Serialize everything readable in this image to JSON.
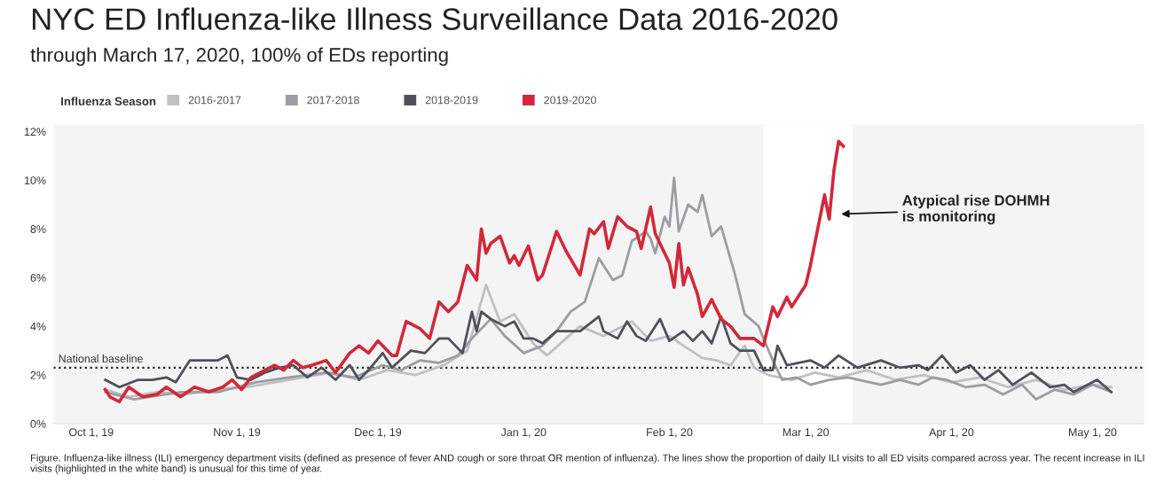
{
  "chart_data": {
    "type": "line",
    "title": "NYC ED Influenza-like Illness Surveillance Data 2016-2020",
    "subtitle": "through March 17, 2020, 100% of EDs reporting",
    "legend_title": "Influenza Season",
    "legend": "top left",
    "grid": false,
    "marker": "none",
    "line_style": "solid",
    "xlim": [
      "2019-09-23",
      "2020-05-12"
    ],
    "xticks": [
      {
        "value": "2019-10-01",
        "label": "Oct 1, 19"
      },
      {
        "value": "2019-11-01",
        "label": "Nov 1, 19"
      },
      {
        "value": "2019-12-01",
        "label": "Dec 1, 19"
      },
      {
        "value": "2020-01-01",
        "label": "Jan 1, 20"
      },
      {
        "value": "2020-02-01",
        "label": "Feb 1, 20"
      },
      {
        "value": "2020-03-01",
        "label": "Mar 1, 20"
      },
      {
        "value": "2020-04-01",
        "label": "Apr 1, 20"
      },
      {
        "value": "2020-05-01",
        "label": "May 1, 20"
      }
    ],
    "ylim": [
      0,
      12.3
    ],
    "yticks": [
      {
        "value": 0,
        "label": "0%"
      },
      {
        "value": 2,
        "label": "2%"
      },
      {
        "value": 4,
        "label": "4%"
      },
      {
        "value": 6,
        "label": "6%"
      },
      {
        "value": 8,
        "label": "8%"
      },
      {
        "value": 10,
        "label": "10%"
      },
      {
        "value": 12,
        "label": "12%"
      }
    ],
    "bands": [
      {
        "axis": "x",
        "from": "2020-02-21",
        "to": "2020-03-11",
        "color": "#ffffff"
      }
    ],
    "ref_lines": [
      {
        "axis": "y",
        "value": 2.3,
        "label": "National baseline",
        "line_style": "dotted",
        "color": "#222222"
      }
    ],
    "series": [
      {
        "name": "2016-2017",
        "color": "#bfc0c3",
        "x": [
          "2019-10-04",
          "2019-10-09",
          "2019-10-15",
          "2019-10-21",
          "2019-10-27",
          "2019-11-03",
          "2019-11-09",
          "2019-11-15",
          "2019-11-21",
          "2019-11-27",
          "2019-12-03",
          "2019-12-09",
          "2019-12-15",
          "2019-12-20",
          "2019-12-24",
          "2019-12-27",
          "2019-12-30",
          "2020-01-03",
          "2020-01-06",
          "2020-01-10",
          "2020-01-13",
          "2020-01-18",
          "2020-01-24",
          "2020-01-28",
          "2020-02-01",
          "2020-02-04",
          "2020-02-08",
          "2020-02-11",
          "2020-02-14",
          "2020-02-17",
          "2020-02-19",
          "2020-02-22",
          "2020-02-27",
          "2020-03-03",
          "2020-03-08",
          "2020-03-14",
          "2020-03-20",
          "2020-03-26",
          "2020-04-01",
          "2020-04-07",
          "2020-04-13",
          "2020-04-19",
          "2020-04-25",
          "2020-05-01",
          "2020-05-05"
        ],
        "values": [
          1.4,
          1.1,
          1.3,
          1.2,
          1.4,
          1.5,
          1.7,
          1.9,
          2.1,
          1.8,
          2.2,
          2.0,
          2.4,
          3.0,
          5.7,
          4.2,
          4.5,
          3.3,
          2.8,
          3.5,
          4.0,
          3.6,
          4.2,
          3.4,
          3.6,
          3.2,
          2.7,
          2.6,
          2.4,
          3.2,
          2.3,
          2.0,
          1.8,
          2.1,
          1.9,
          2.2,
          1.8,
          2.0,
          1.7,
          1.9,
          1.5,
          1.8,
          1.4,
          1.6,
          1.5
        ]
      },
      {
        "name": "2017-2018",
        "color": "#9b9da2",
        "x": [
          "2019-10-04",
          "2019-10-10",
          "2019-10-20",
          "2019-10-28",
          "2019-11-05",
          "2019-11-12",
          "2019-11-20",
          "2019-11-26",
          "2019-12-02",
          "2019-12-06",
          "2019-12-10",
          "2019-12-14",
          "2019-12-18",
          "2019-12-21",
          "2019-12-25",
          "2019-12-28",
          "2020-01-01",
          "2020-01-05",
          "2020-01-08",
          "2020-01-11",
          "2020-01-14",
          "2020-01-17",
          "2020-01-20",
          "2020-01-22",
          "2020-01-24",
          "2020-01-27",
          "2020-01-28",
          "2020-01-29",
          "2020-01-31",
          "2020-02-01",
          "2020-02-02",
          "2020-02-03",
          "2020-02-05",
          "2020-02-07",
          "2020-02-08",
          "2020-02-10",
          "2020-02-12",
          "2020-02-15",
          "2020-02-17",
          "2020-02-20",
          "2020-02-21",
          "2020-02-23",
          "2020-02-25",
          "2020-02-28",
          "2020-03-02",
          "2020-03-06",
          "2020-03-10",
          "2020-03-17",
          "2020-03-21",
          "2020-03-25",
          "2020-03-28",
          "2020-03-31",
          "2020-04-04",
          "2020-04-08",
          "2020-04-12",
          "2020-04-16",
          "2020-04-19",
          "2020-04-23",
          "2020-04-27",
          "2020-05-01",
          "2020-05-05"
        ],
        "values": [
          1.3,
          1.0,
          1.3,
          1.3,
          1.7,
          1.9,
          2.1,
          1.9,
          2.4,
          2.2,
          2.6,
          2.5,
          2.8,
          3.5,
          4.3,
          3.6,
          2.9,
          3.2,
          3.8,
          4.6,
          5.0,
          6.8,
          5.9,
          6.1,
          7.5,
          7.9,
          7.6,
          7.0,
          8.5,
          8.1,
          10.1,
          7.9,
          9.0,
          8.7,
          9.4,
          7.7,
          8.1,
          6.1,
          4.5,
          4.0,
          3.5,
          2.6,
          1.8,
          1.9,
          1.6,
          1.8,
          1.9,
          1.6,
          1.8,
          1.6,
          1.9,
          1.8,
          1.5,
          1.6,
          1.2,
          1.6,
          1.0,
          1.4,
          1.2,
          1.6,
          1.3
        ]
      },
      {
        "name": "2018-2019",
        "color": "#4e505a",
        "x": [
          "2019-10-04",
          "2019-10-07",
          "2019-10-11",
          "2019-10-14",
          "2019-10-17",
          "2019-10-19",
          "2019-10-22",
          "2019-10-25",
          "2019-10-28",
          "2019-10-30",
          "2019-11-01",
          "2019-11-04",
          "2019-11-07",
          "2019-11-10",
          "2019-11-13",
          "2019-11-16",
          "2019-11-19",
          "2019-11-22",
          "2019-11-25",
          "2019-11-27",
          "2019-11-29",
          "2019-12-02",
          "2019-12-04",
          "2019-12-08",
          "2019-12-11",
          "2019-12-14",
          "2019-12-16",
          "2019-12-19",
          "2019-12-21",
          "2019-12-22",
          "2019-12-23",
          "2019-12-25",
          "2019-12-28",
          "2019-12-30",
          "2020-01-01",
          "2020-01-03",
          "2020-01-05",
          "2020-01-08",
          "2020-01-10",
          "2020-01-13",
          "2020-01-17",
          "2020-01-18",
          "2020-01-21",
          "2020-01-23",
          "2020-01-25",
          "2020-01-27",
          "2020-01-30",
          "2020-02-01",
          "2020-02-04",
          "2020-02-06",
          "2020-02-08",
          "2020-02-10",
          "2020-02-12",
          "2020-02-14",
          "2020-02-16",
          "2020-02-19",
          "2020-02-21",
          "2020-02-23",
          "2020-02-24",
          "2020-02-26",
          "2020-03-02",
          "2020-03-05",
          "2020-03-08",
          "2020-03-12",
          "2020-03-17",
          "2020-03-21",
          "2020-03-25",
          "2020-03-27",
          "2020-03-30",
          "2020-04-02",
          "2020-04-05",
          "2020-04-08",
          "2020-04-11",
          "2020-04-14",
          "2020-04-18",
          "2020-04-22",
          "2020-04-25",
          "2020-04-27",
          "2020-04-30",
          "2020-05-02",
          "2020-05-05"
        ],
        "values": [
          1.8,
          1.5,
          1.8,
          1.8,
          1.9,
          1.7,
          2.6,
          2.6,
          2.6,
          2.8,
          1.9,
          1.8,
          2.1,
          2.3,
          2.4,
          1.9,
          2.3,
          1.8,
          2.4,
          1.8,
          2.2,
          2.9,
          2.3,
          3.0,
          2.9,
          3.5,
          3.5,
          2.9,
          4.6,
          3.8,
          4.6,
          4.3,
          4.0,
          4.2,
          3.5,
          3.5,
          3.3,
          3.8,
          3.8,
          3.8,
          4.4,
          3.8,
          3.5,
          4.2,
          3.6,
          3.4,
          4.3,
          3.4,
          3.8,
          3.4,
          3.8,
          3.3,
          4.4,
          3.3,
          3.0,
          3.0,
          2.2,
          2.2,
          3.2,
          2.4,
          2.6,
          2.3,
          2.8,
          2.3,
          2.6,
          2.3,
          2.4,
          2.2,
          2.8,
          2.1,
          2.4,
          1.8,
          2.2,
          1.6,
          2.1,
          1.5,
          1.6,
          1.3,
          1.6,
          1.8,
          1.3
        ]
      },
      {
        "name": "2019-2020",
        "color": "#d2283c",
        "x": [
          "2019-10-04",
          "2019-10-05",
          "2019-10-07",
          "2019-10-09",
          "2019-10-12",
          "2019-10-15",
          "2019-10-17",
          "2019-10-20",
          "2019-10-23",
          "2019-10-26",
          "2019-10-29",
          "2019-10-31",
          "2019-11-02",
          "2019-11-04",
          "2019-11-07",
          "2019-11-09",
          "2019-11-11",
          "2019-11-13",
          "2019-11-15",
          "2019-11-17",
          "2019-11-20",
          "2019-11-22",
          "2019-11-25",
          "2019-11-27",
          "2019-11-29",
          "2019-12-01",
          "2019-12-04",
          "2019-12-05",
          "2019-12-07",
          "2019-12-10",
          "2019-12-12",
          "2019-12-14",
          "2019-12-16",
          "2019-12-18",
          "2019-12-20",
          "2019-12-22",
          "2019-12-23",
          "2019-12-24",
          "2019-12-25",
          "2019-12-27",
          "2019-12-29",
          "2019-12-30",
          "2019-12-31",
          "2020-01-02",
          "2020-01-04",
          "2020-01-05",
          "2020-01-08",
          "2020-01-10",
          "2020-01-13",
          "2020-01-15",
          "2020-01-16",
          "2020-01-18",
          "2020-01-19",
          "2020-01-21",
          "2020-01-23",
          "2020-01-25",
          "2020-01-26",
          "2020-01-28",
          "2020-01-29",
          "2020-02-01",
          "2020-02-02",
          "2020-02-03",
          "2020-02-04",
          "2020-02-05",
          "2020-02-07",
          "2020-02-08",
          "2020-02-10",
          "2020-02-12",
          "2020-02-14",
          "2020-02-16",
          "2020-02-19",
          "2020-02-21",
          "2020-02-22",
          "2020-02-23",
          "2020-02-24",
          "2020-02-26",
          "2020-02-27",
          "2020-03-01",
          "2020-03-02",
          "2020-03-05",
          "2020-03-06",
          "2020-03-07",
          "2020-03-08",
          "2020-03-09"
        ],
        "values": [
          1.4,
          1.1,
          0.9,
          1.5,
          1.1,
          1.2,
          1.5,
          1.1,
          1.5,
          1.3,
          1.5,
          1.8,
          1.4,
          1.9,
          2.2,
          2.4,
          2.2,
          2.6,
          2.3,
          2.4,
          2.6,
          2.1,
          2.9,
          3.2,
          2.9,
          3.4,
          2.8,
          2.8,
          4.2,
          3.9,
          3.5,
          5.0,
          4.6,
          5.0,
          6.5,
          5.9,
          8.0,
          7.0,
          7.4,
          7.7,
          6.6,
          6.9,
          6.5,
          7.3,
          5.9,
          6.1,
          7.9,
          7.1,
          6.1,
          8.0,
          7.8,
          8.3,
          7.2,
          8.5,
          8.1,
          7.9,
          7.2,
          8.9,
          7.8,
          6.6,
          5.6,
          7.4,
          5.7,
          6.4,
          5.3,
          4.4,
          5.1,
          4.3,
          4.0,
          3.5,
          3.5,
          3.2,
          4.0,
          4.8,
          4.4,
          5.2,
          4.8,
          5.7,
          6.5,
          9.4,
          8.4,
          10.4,
          11.6,
          11.4
        ]
      }
    ],
    "annotations": [
      "Atypical rise DOHMH\nis monitoring",
      "Figure. Influenza-like illness (ILI) emergency department visits (defined as presence of fever AND cough or sore throat OR mention of influenza). The lines show the proportion of daily ILI visits to all ED visits compared across year. The recent increase in ILI visits (highlighted in the white band) is unusual for this time of year."
    ]
  }
}
